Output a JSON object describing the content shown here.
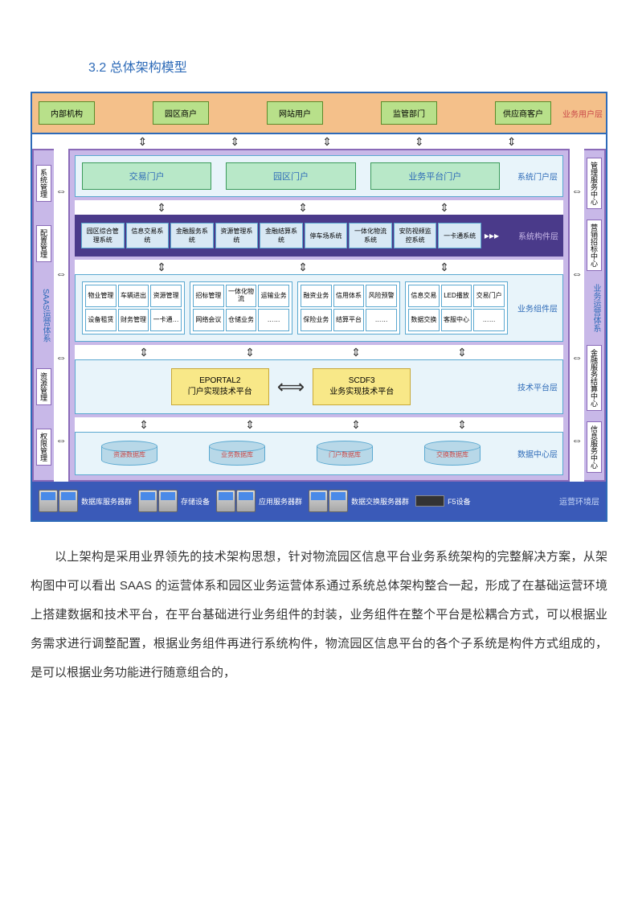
{
  "heading": "3.2 总体架构模型",
  "colors": {
    "border_main": "#2e6bb8",
    "user_layer_bg": "#f4c08a",
    "user_box_bg": "#b8e08a",
    "purple_bg": "#c8b8e8",
    "purple_border": "#8a6ab8",
    "cyan_bg": "#e8f4fa",
    "cyan_border": "#5aa8d0",
    "portal_box_bg": "#b8e8c8",
    "dark_purple": "#4a3a8a",
    "yellow_bg": "#f8e888",
    "infra_bg": "#3a5ab8",
    "red_text": "#c94a4a"
  },
  "user_layer": {
    "label": "业务用户层",
    "boxes": [
      "内部机构",
      "园区商户",
      "网站用户",
      "监管部门",
      "供应商客户"
    ]
  },
  "left_rail": {
    "title": "SAAS运营体系",
    "items": [
      "系统管理",
      "配置管理",
      "资源管理",
      "权限管理"
    ]
  },
  "right_rail": {
    "items": [
      "管理服务中心",
      "营销招标中心",
      "业务运营体系",
      "金融服务结算中心",
      "信息服务中心"
    ]
  },
  "portal_layer": {
    "label": "系统门户层",
    "boxes": [
      "交易门户",
      "园区门户",
      "业务平台门户"
    ]
  },
  "syscomp_layer": {
    "label": "系统构件层",
    "boxes": [
      "园区综合管理系统",
      "信息交易系统",
      "金融服务系统",
      "资源管理系统",
      "金融结算系统",
      "停车场系统",
      "一体化物流系统",
      "安防视频监控系统",
      "一卡通系统"
    ]
  },
  "bizcomp_layer": {
    "label": "业务组件层",
    "groups": [
      [
        "物业管理",
        "车辆进出",
        "资源管理",
        "设备租赁",
        "财务管理",
        "一卡通…"
      ],
      [
        "招标管理",
        "一体化物流",
        "运输业务",
        "网络会议",
        "仓储业务",
        "……"
      ],
      [
        "融资业务",
        "信用体系",
        "风险预警",
        "保险业务",
        "结算平台",
        "……"
      ],
      [
        "信息交易",
        "LED播放",
        "交易门户",
        "数据交换",
        "客服中心",
        "……"
      ]
    ]
  },
  "tech_layer": {
    "label": "技术平台层",
    "boxes": [
      {
        "title": "EPORTAL2",
        "sub": "门户实现技术平台"
      },
      {
        "title": "SCDF3",
        "sub": "业务实现技术平台"
      }
    ]
  },
  "data_layer": {
    "label": "数据中心层",
    "dbs": [
      "资源数据库",
      "业务数据库",
      "门户数据库",
      "交换数据库"
    ]
  },
  "infra_layer": {
    "label": "运营环境层",
    "items": [
      "数据库服务器群",
      "存储设备",
      "应用服务器群",
      "数据交换服务器群",
      "F5设备"
    ]
  },
  "paragraph": "以上架构是采用业界领先的技术架构思想，针对物流园区信息平台业务系统架构的完整解决方案，从架构图中可以看出 SAAS 的运营体系和园区业务运营体系通过系统总体架构整合一起，形成了在基础运营环境上搭建数据和技术平台，在平台基础进行业务组件的封装，业务组件在整个平台是松耦合方式，可以根据业务需求进行调整配置，根据业务组件再进行系统构件，物流园区信息平台的各个子系统是构件方式组成的，是可以根据业务功能进行随意组合的，"
}
